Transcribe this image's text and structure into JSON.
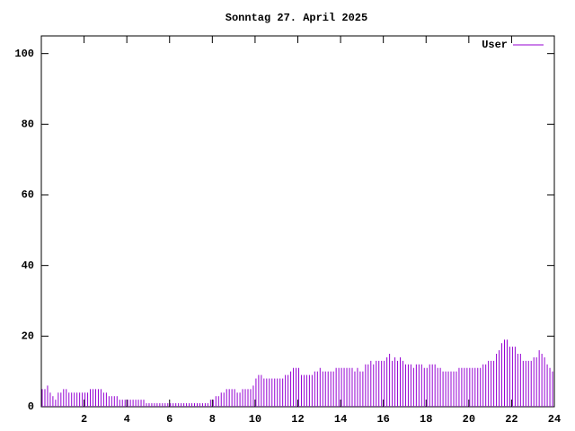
{
  "chart_data": {
    "type": "impulses",
    "title": "Sonntag 27. April 2025",
    "x": [
      0,
      0.125,
      0.25,
      0.375,
      0.5,
      0.625,
      0.75,
      0.875,
      1,
      1.125,
      1.25,
      1.375,
      1.5,
      1.625,
      1.75,
      1.875,
      2,
      2.125,
      2.25,
      2.375,
      2.5,
      2.625,
      2.75,
      2.875,
      3,
      3.125,
      3.25,
      3.375,
      3.5,
      3.625,
      3.75,
      3.875,
      4,
      4.125,
      4.25,
      4.375,
      4.5,
      4.625,
      4.75,
      4.875,
      5,
      5.125,
      5.25,
      5.375,
      5.5,
      5.625,
      5.75,
      5.875,
      6,
      6.125,
      6.25,
      6.375,
      6.5,
      6.625,
      6.75,
      6.875,
      7,
      7.125,
      7.25,
      7.375,
      7.5,
      7.625,
      7.75,
      7.875,
      8,
      8.125,
      8.25,
      8.375,
      8.5,
      8.625,
      8.75,
      8.875,
      9,
      9.125,
      9.25,
      9.375,
      9.5,
      9.625,
      9.75,
      9.875,
      10,
      10.125,
      10.25,
      10.375,
      10.5,
      10.625,
      10.75,
      10.875,
      11,
      11.125,
      11.25,
      11.375,
      11.5,
      11.625,
      11.75,
      11.875,
      12,
      12.125,
      12.25,
      12.375,
      12.5,
      12.625,
      12.75,
      12.875,
      13,
      13.125,
      13.25,
      13.375,
      13.5,
      13.625,
      13.75,
      13.875,
      14,
      14.125,
      14.25,
      14.375,
      14.5,
      14.625,
      14.75,
      14.875,
      15,
      15.125,
      15.25,
      15.375,
      15.5,
      15.625,
      15.75,
      15.875,
      16,
      16.125,
      16.25,
      16.375,
      16.5,
      16.625,
      16.75,
      16.875,
      17,
      17.125,
      17.25,
      17.375,
      17.5,
      17.625,
      17.75,
      17.875,
      18,
      18.125,
      18.25,
      18.375,
      18.5,
      18.625,
      18.75,
      18.875,
      19,
      19.125,
      19.25,
      19.375,
      19.5,
      19.625,
      19.75,
      19.875,
      20,
      20.125,
      20.25,
      20.375,
      20.5,
      20.625,
      20.75,
      20.875,
      21,
      21.125,
      21.25,
      21.375,
      21.5,
      21.625,
      21.75,
      21.875,
      22,
      22.125,
      22.25,
      22.375,
      22.5,
      22.625,
      22.75,
      22.875,
      23,
      23.125,
      23.25,
      23.375,
      23.5,
      23.625,
      23.75,
      23.875
    ],
    "series": [
      {
        "name": "User",
        "color": "#9400d3",
        "values": [
          5,
          5,
          6,
          4,
          3,
          2,
          4,
          4,
          5,
          5,
          4,
          4,
          4,
          4,
          4,
          4,
          4,
          4,
          5,
          5,
          5,
          5,
          5,
          4,
          4,
          3,
          3,
          3,
          3,
          2,
          2,
          2,
          2,
          2,
          2,
          2,
          2,
          2,
          2,
          1,
          1,
          1,
          1,
          1,
          1,
          1,
          1,
          1,
          1,
          1,
          1,
          1,
          1,
          1,
          1,
          1,
          1,
          1,
          1,
          1,
          1,
          1,
          1,
          2,
          2,
          3,
          3,
          4,
          4,
          5,
          5,
          5,
          5,
          4,
          4,
          5,
          5,
          5,
          5,
          6,
          8,
          9,
          9,
          8,
          8,
          8,
          8,
          8,
          8,
          8,
          8,
          9,
          9,
          10,
          11,
          11,
          11,
          9,
          9,
          9,
          9,
          9,
          10,
          10,
          11,
          10,
          10,
          10,
          10,
          10,
          11,
          11,
          11,
          11,
          11,
          11,
          11,
          10,
          11,
          10,
          10,
          12,
          12,
          13,
          12,
          13,
          13,
          13,
          13,
          14,
          15,
          13,
          14,
          13,
          14,
          13,
          12,
          12,
          12,
          11,
          12,
          12,
          12,
          11,
          11,
          12,
          12,
          12,
          11,
          11,
          10,
          10,
          10,
          10,
          10,
          10,
          11,
          11,
          11,
          11,
          11,
          11,
          11,
          11,
          11,
          12,
          12,
          13,
          13,
          13,
          15,
          16,
          18,
          19,
          19,
          17,
          17,
          17,
          15,
          15,
          13,
          13,
          13,
          13,
          14,
          14,
          16,
          15,
          14,
          12,
          11,
          10
        ]
      }
    ],
    "xlim": [
      0,
      24
    ],
    "xticks": [
      2,
      4,
      6,
      8,
      10,
      12,
      14,
      16,
      18,
      20,
      22,
      24
    ],
    "ylim": [
      0,
      105
    ],
    "yticks": [
      0,
      20,
      40,
      60,
      80,
      100
    ],
    "legend": "top-right"
  }
}
